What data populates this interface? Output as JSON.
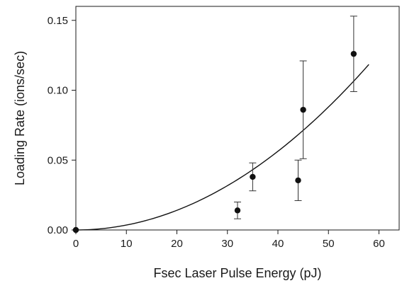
{
  "chart_data": {
    "type": "scatter",
    "title": "",
    "xlabel": "Fsec Laser Pulse Energy (pJ)",
    "ylabel": "Loading Rate (ions/sec)",
    "xlim": [
      0,
      64
    ],
    "ylim": [
      0,
      0.16
    ],
    "x_ticks": [
      0,
      10,
      20,
      30,
      40,
      50,
      60
    ],
    "x_tick_labels": [
      "0",
      "10",
      "20",
      "30",
      "40",
      "50",
      "60"
    ],
    "y_ticks": [
      0,
      0.05,
      0.1,
      0.15
    ],
    "y_tick_labels": [
      "0.00",
      "0.05",
      "0.10",
      "0.15"
    ],
    "grid": false,
    "points": [
      {
        "x": 0,
        "y": 0.0,
        "err_low": 0.0,
        "err_high": 0.0
      },
      {
        "x": 32,
        "y": 0.014,
        "err_low": 0.008,
        "err_high": 0.02
      },
      {
        "x": 35,
        "y": 0.038,
        "err_low": 0.028,
        "err_high": 0.048
      },
      {
        "x": 44,
        "y": 0.0355,
        "err_low": 0.021,
        "err_high": 0.05
      },
      {
        "x": 45,
        "y": 0.086,
        "err_low": 0.051,
        "err_high": 0.121
      },
      {
        "x": 55,
        "y": 0.126,
        "err_low": 0.099,
        "err_high": 0.153
      }
    ],
    "fit_curve": {
      "form": "power",
      "coefficient": 3.52e-05,
      "exponent": 2,
      "x_range": [
        0,
        58
      ]
    },
    "colors": {
      "marker": "#111111",
      "line": "#111111",
      "axis": "#1a1a1a"
    }
  }
}
